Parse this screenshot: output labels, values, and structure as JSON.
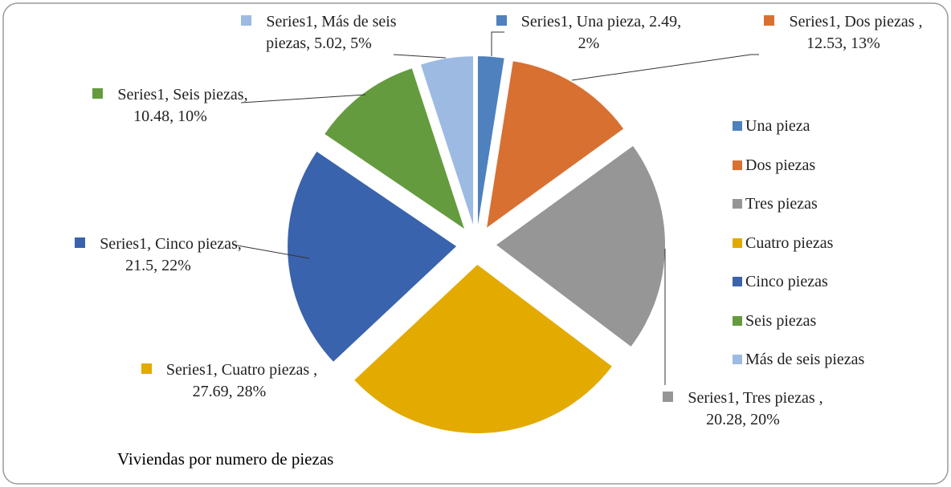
{
  "chart_data": {
    "type": "pie",
    "title": "Viviendas por numero de piezas",
    "categories": [
      "Una pieza",
      "Dos piezas",
      "Tres piezas",
      "Cuatro piezas",
      "Cinco piezas",
      "Seis piezas",
      "Más de seis piezas"
    ],
    "values": [
      2.49,
      12.53,
      20.28,
      27.69,
      21.5,
      10.48,
      5.02
    ],
    "value_labels": [
      "Series1, Una pieza, 2.49, 2%",
      "Series1, Dos piezas , 12.53, 13%",
      "Series1, Tres piezas , 20.28, 20%",
      "Series1, Cuatro piezas , 27.69, 28%",
      "Series1, Cinco piezas, 21.5, 22%",
      "Series1, Seis piezas, 10.48, 10%",
      "Series1, Más de seis piezas, 5.02, 5%"
    ],
    "colors": [
      "#4e81bd",
      "#d87032",
      "#969696",
      "#e3aa00",
      "#3a63ad",
      "#659b3f",
      "#9dbbe2"
    ],
    "legend": "right"
  }
}
